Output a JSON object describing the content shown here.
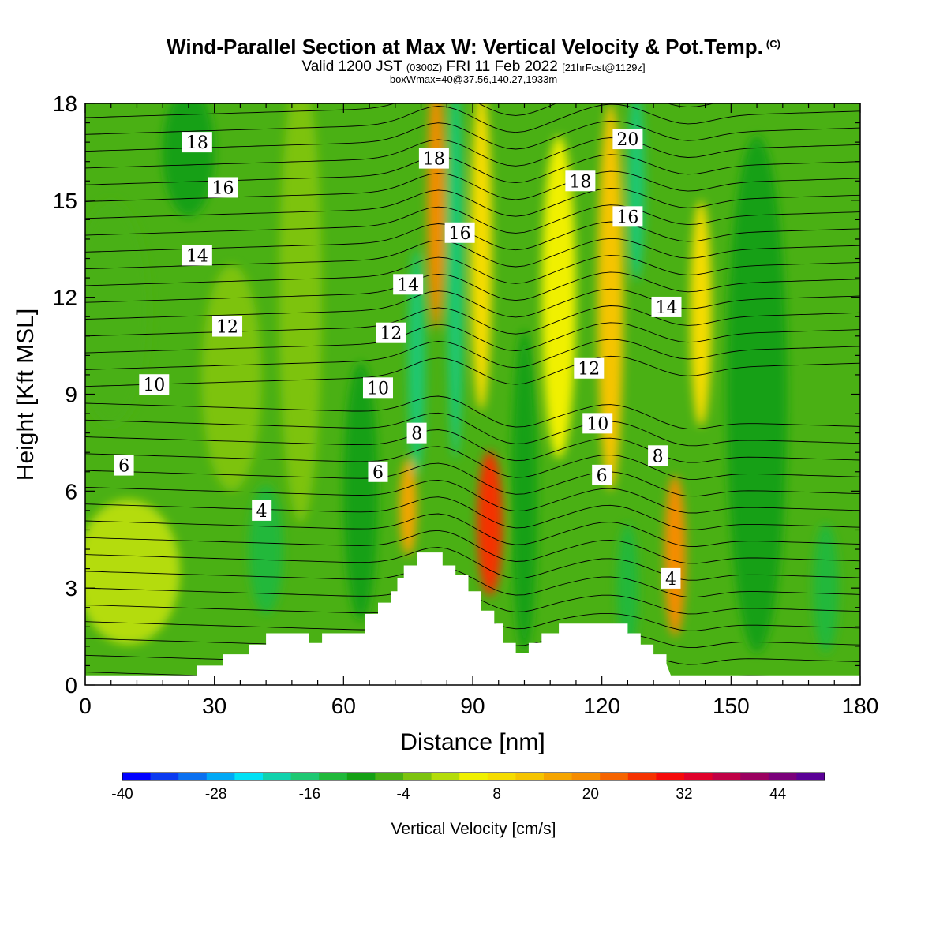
{
  "title": {
    "main": "Wind-Parallel Section at Max W: Vertical Velocity & Pot.Temp.",
    "copyright": "(C)",
    "valid_prefix": "Valid 1200 JST",
    "valid_utc": "(0300Z)",
    "valid_date": "FRI 11 Feb 2022",
    "forecast": "[21hrFcst@1129z]",
    "box": "boxWmax=40@37.56,140.27,1933m"
  },
  "chart_data": {
    "type": "heatmap",
    "xlabel": "Distance [nm]",
    "ylabel": "Height [Kft MSL]",
    "xlim": [
      0,
      180
    ],
    "ylim": [
      0,
      18
    ],
    "xticks": [
      0,
      30,
      60,
      90,
      120,
      150,
      180
    ],
    "yticks": [
      0,
      3,
      6,
      9,
      12,
      15,
      18
    ],
    "colorbar": {
      "label": "Vertical Velocity [cm/s]",
      "range": [
        -40,
        50
      ],
      "step": 4,
      "tick_labels": [
        -40,
        -28,
        -16,
        -4,
        8,
        20,
        32,
        44
      ],
      "colors": [
        "#0000ff",
        "#0a3af0",
        "#0a70f0",
        "#00a8f5",
        "#00e1f5",
        "#10d2ad",
        "#1ec872",
        "#20b83a",
        "#14a014",
        "#4ab014",
        "#7dc30f",
        "#b4dc0a",
        "#f0f000",
        "#f5dc00",
        "#f5c400",
        "#f5a500",
        "#f58c00",
        "#f56400",
        "#f53200",
        "#f50a0a",
        "#e0002a",
        "#c00045",
        "#9a0060",
        "#7a007a",
        "#5a0096"
      ]
    },
    "velocity_cells": [
      {
        "x": 10,
        "y": 3.5,
        "w": 24,
        "h": 4.5,
        "v": 6
      },
      {
        "x": 6,
        "y": 11.5,
        "w": 18,
        "h": 7,
        "v": -2
      },
      {
        "x": 24,
        "y": 16.5,
        "w": 12,
        "h": 4,
        "v": -6
      },
      {
        "x": 34,
        "y": 9.5,
        "w": 14,
        "h": 7,
        "v": 3
      },
      {
        "x": 42,
        "y": 4.2,
        "w": 8,
        "h": 4,
        "v": -10
      },
      {
        "x": 50,
        "y": 12,
        "w": 10,
        "h": 14,
        "v": 1
      },
      {
        "x": 64,
        "y": 6,
        "w": 8,
        "h": 8,
        "v": -6
      },
      {
        "x": 75,
        "y": 5.5,
        "w": 4,
        "h": 3,
        "v": 20
      },
      {
        "x": 77,
        "y": 10,
        "w": 4,
        "h": 7,
        "v": -14
      },
      {
        "x": 81.5,
        "y": 15,
        "w": 4,
        "h": 8,
        "v": 24
      },
      {
        "x": 86,
        "y": 13,
        "w": 4,
        "h": 12,
        "v": -16
      },
      {
        "x": 94,
        "y": 5,
        "w": 6,
        "h": 4.5,
        "v": 32
      },
      {
        "x": 92,
        "y": 13.5,
        "w": 5,
        "h": 10,
        "v": 14
      },
      {
        "x": 102,
        "y": 6,
        "w": 6,
        "h": 10,
        "v": -8
      },
      {
        "x": 110,
        "y": 12,
        "w": 8,
        "h": 10,
        "v": 10
      },
      {
        "x": 122,
        "y": 12,
        "w": 6,
        "h": 12,
        "v": 16
      },
      {
        "x": 128,
        "y": 15.5,
        "w": 4,
        "h": 6,
        "v": -14
      },
      {
        "x": 126,
        "y": 3,
        "w": 5,
        "h": 4,
        "v": -12
      },
      {
        "x": 137,
        "y": 4,
        "w": 5,
        "h": 5,
        "v": 24
      },
      {
        "x": 143,
        "y": 11.5,
        "w": 5,
        "h": 7,
        "v": 14
      },
      {
        "x": 156,
        "y": 9,
        "w": 14,
        "h": 16,
        "v": -6
      },
      {
        "x": 172,
        "y": 3,
        "w": 6,
        "h": 4,
        "v": -10
      }
    ],
    "theta_labels": [
      {
        "x": 26,
        "y": 16.8,
        "text": "18"
      },
      {
        "x": 32,
        "y": 15.4,
        "text": "16"
      },
      {
        "x": 26,
        "y": 13.3,
        "text": "14"
      },
      {
        "x": 33,
        "y": 11.1,
        "text": "12"
      },
      {
        "x": 16,
        "y": 9.3,
        "text": "10"
      },
      {
        "x": 9,
        "y": 6.8,
        "text": "6"
      },
      {
        "x": 41,
        "y": 5.4,
        "text": "4"
      },
      {
        "x": 81,
        "y": 16.3,
        "text": "18"
      },
      {
        "x": 87,
        "y": 14.0,
        "text": "16"
      },
      {
        "x": 75,
        "y": 12.4,
        "text": "14"
      },
      {
        "x": 71,
        "y": 10.9,
        "text": "12"
      },
      {
        "x": 68,
        "y": 9.2,
        "text": "10"
      },
      {
        "x": 77,
        "y": 7.8,
        "text": "8"
      },
      {
        "x": 68,
        "y": 6.6,
        "text": "6"
      },
      {
        "x": 115,
        "y": 15.6,
        "text": "18"
      },
      {
        "x": 126,
        "y": 16.9,
        "text": "20"
      },
      {
        "x": 126,
        "y": 14.5,
        "text": "16"
      },
      {
        "x": 135,
        "y": 11.7,
        "text": "14"
      },
      {
        "x": 117,
        "y": 9.8,
        "text": "12"
      },
      {
        "x": 119,
        "y": 8.1,
        "text": "10"
      },
      {
        "x": 133,
        "y": 7.1,
        "text": "8"
      },
      {
        "x": 120,
        "y": 6.5,
        "text": "6"
      },
      {
        "x": 136,
        "y": 3.3,
        "text": "4"
      }
    ],
    "terrain": [
      [
        0,
        0.3
      ],
      [
        26,
        0.3
      ],
      [
        26,
        0.6
      ],
      [
        32,
        0.6
      ],
      [
        32,
        0.95
      ],
      [
        38,
        0.95
      ],
      [
        38,
        1.25
      ],
      [
        42,
        1.25
      ],
      [
        42,
        1.6
      ],
      [
        52,
        1.6
      ],
      [
        52,
        1.3
      ],
      [
        55,
        1.3
      ],
      [
        55,
        1.6
      ],
      [
        65,
        1.6
      ],
      [
        65,
        2.2
      ],
      [
        68,
        2.2
      ],
      [
        68,
        2.55
      ],
      [
        71,
        2.55
      ],
      [
        71,
        2.9
      ],
      [
        72.5,
        2.9
      ],
      [
        72.5,
        3.3
      ],
      [
        74,
        3.3
      ],
      [
        74,
        3.7
      ],
      [
        77,
        3.7
      ],
      [
        77,
        4.1
      ],
      [
        83,
        4.1
      ],
      [
        83,
        3.7
      ],
      [
        86,
        3.7
      ],
      [
        86,
        3.4
      ],
      [
        89,
        3.4
      ],
      [
        89,
        2.9
      ],
      [
        92,
        2.9
      ],
      [
        92,
        2.3
      ],
      [
        95,
        2.3
      ],
      [
        95,
        1.9
      ],
      [
        97,
        1.9
      ],
      [
        97,
        1.3
      ],
      [
        100,
        1.3
      ],
      [
        100,
        1.0
      ],
      [
        103,
        1.0
      ],
      [
        103,
        1.3
      ],
      [
        106,
        1.3
      ],
      [
        106,
        1.6
      ],
      [
        110,
        1.6
      ],
      [
        110,
        1.9
      ],
      [
        126,
        1.9
      ],
      [
        126,
        1.6
      ],
      [
        129,
        1.6
      ],
      [
        129,
        1.25
      ],
      [
        132,
        1.25
      ],
      [
        132,
        0.95
      ],
      [
        135,
        0.95
      ],
      [
        135,
        0.65
      ],
      [
        136,
        0.3
      ],
      [
        180,
        0.3
      ]
    ]
  }
}
